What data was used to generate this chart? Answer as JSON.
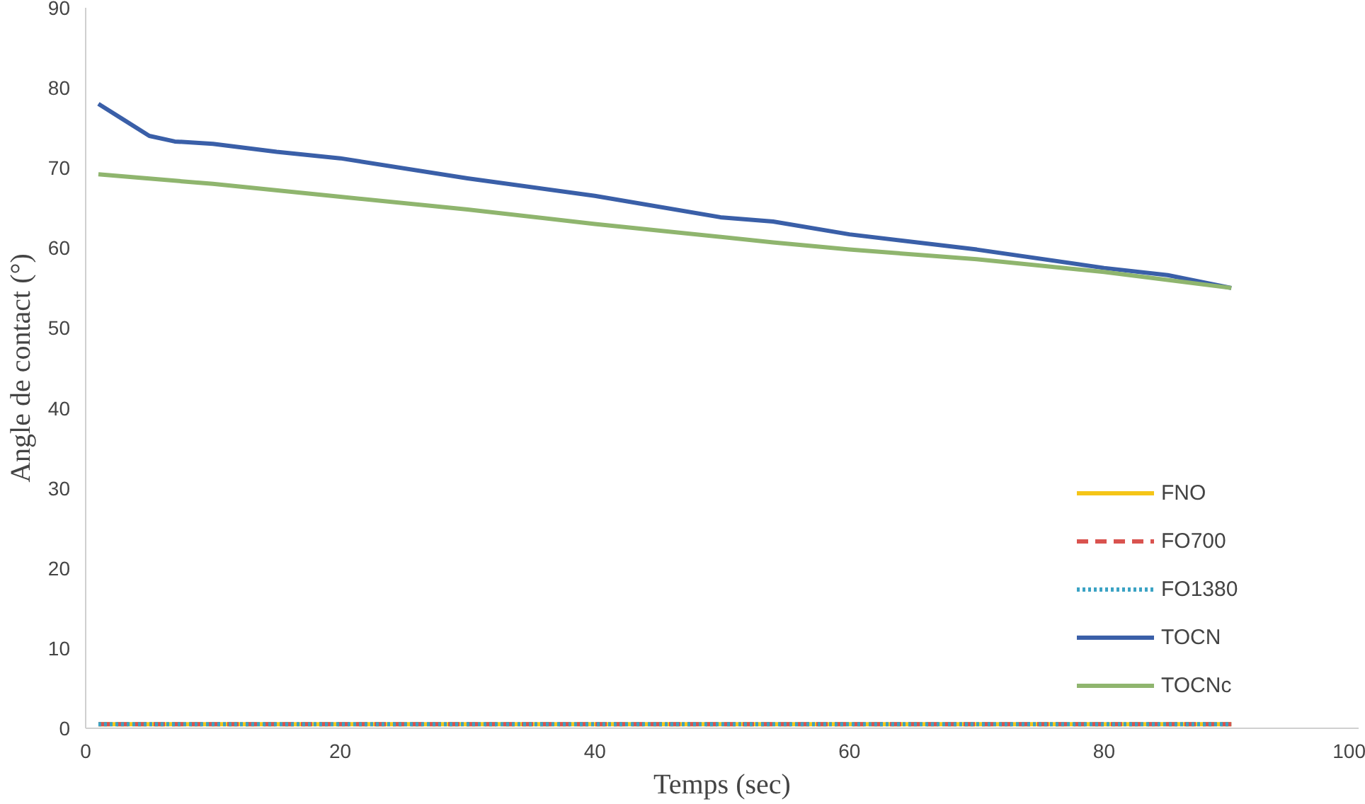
{
  "chart_data": {
    "type": "line",
    "xlabel": "Temps (sec)",
    "ylabel": "Angle de contact (°)",
    "xlim": [
      0,
      100
    ],
    "xticks": [
      0,
      20,
      40,
      60,
      80,
      100
    ],
    "ylim": [
      0,
      90
    ],
    "yticks": [
      0,
      10,
      20,
      30,
      40,
      50,
      60,
      70,
      80,
      90
    ],
    "grid": false,
    "legend": "right",
    "series": [
      {
        "name": "FNO",
        "color": "#f5c518",
        "line_style": "solid",
        "x": [
          1,
          90
        ],
        "values": [
          0.5,
          0.5
        ]
      },
      {
        "name": "FO700",
        "color": "#d9534f",
        "line_style": "dashed",
        "x": [
          1,
          90
        ],
        "values": [
          0.5,
          0.5
        ]
      },
      {
        "name": "FO1380",
        "color": "#3ba3c4",
        "line_style": "dotted",
        "x": [
          1,
          90
        ],
        "values": [
          0.5,
          0.5
        ]
      },
      {
        "name": "TOCN",
        "color": "#3a5fa8",
        "line_style": "solid",
        "x": [
          1,
          3,
          5,
          7,
          10,
          15,
          20,
          30,
          40,
          50,
          54,
          60,
          70,
          80,
          85,
          90
        ],
        "values": [
          78,
          76,
          74,
          73.3,
          73,
          72,
          71.2,
          68.7,
          66.5,
          63.8,
          63.3,
          61.7,
          59.8,
          57.5,
          56.6,
          55
        ]
      },
      {
        "name": "TOCNc",
        "color": "#8fb56e",
        "line_style": "solid",
        "x": [
          1,
          10,
          20,
          30,
          40,
          54,
          60,
          70,
          80,
          90
        ],
        "values": [
          69.2,
          68,
          66.4,
          64.8,
          63,
          60.7,
          59.8,
          58.6,
          57,
          55
        ]
      }
    ]
  }
}
